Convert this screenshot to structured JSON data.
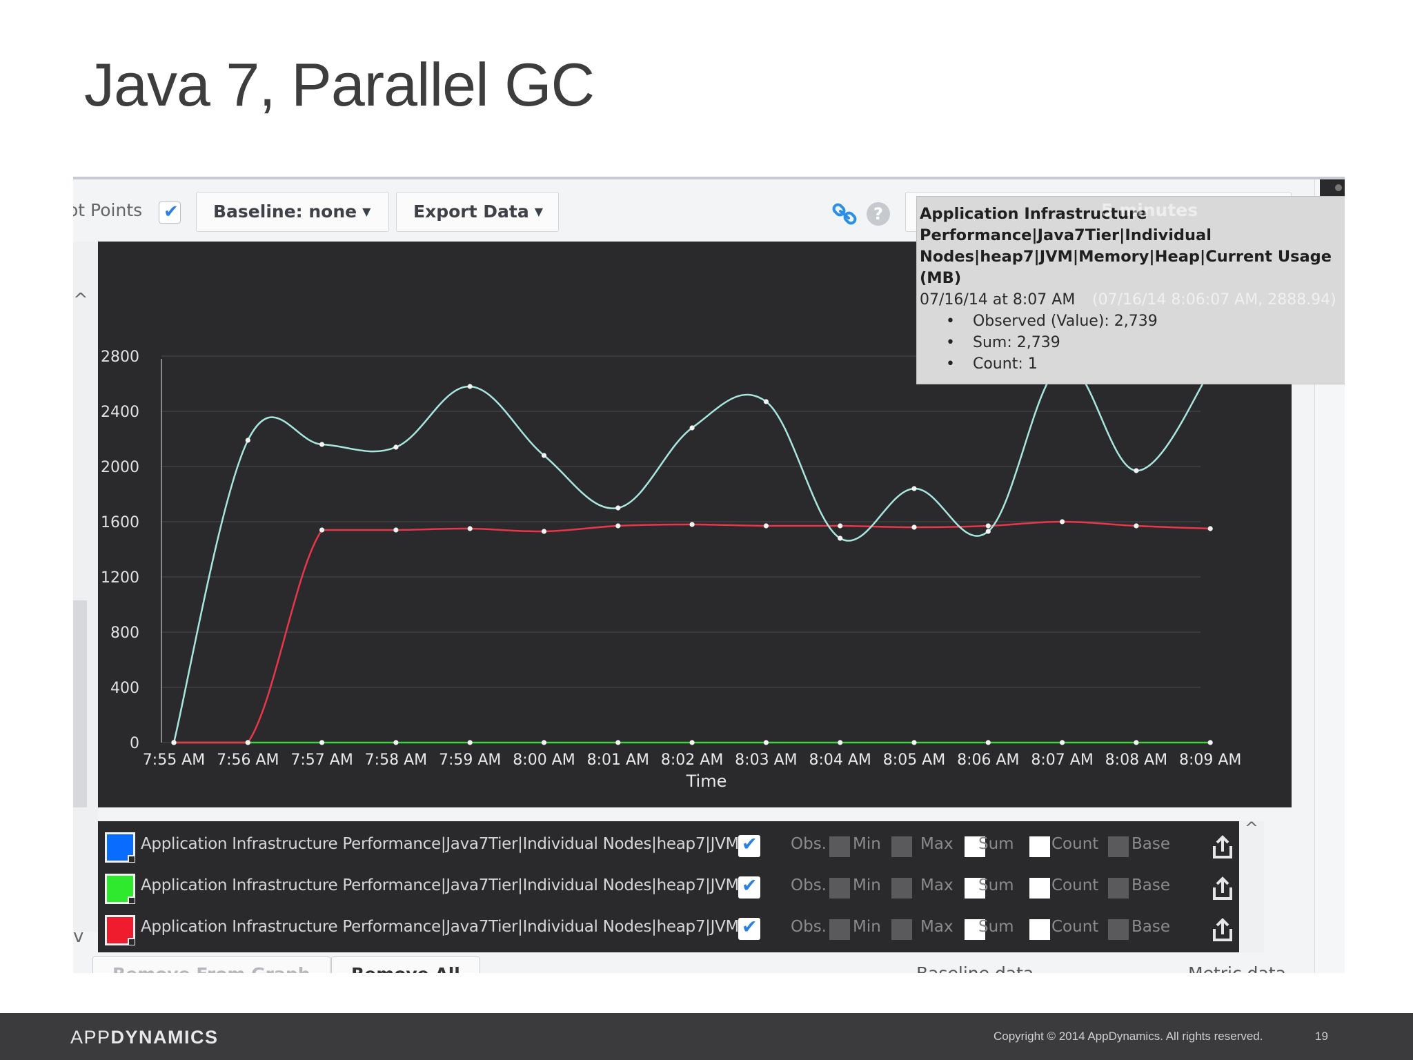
{
  "slide": {
    "title": "Java 7, Parallel GC",
    "page_number": "19"
  },
  "footer": {
    "logo_light": "APP",
    "logo_bold": "DYNAMICS",
    "copyright": "Copyright © 2014 AppDynamics. All rights reserved."
  },
  "toolbar": {
    "plot_points_label": "ot Points",
    "plot_points_checked": true,
    "baseline_label": "Baseline:  none",
    "export_label": "Export Data",
    "time_range_ghost": "5 minutes",
    "link_icon": "link-icon",
    "help_icon": "help-icon",
    "help_glyph": "?"
  },
  "tooltip": {
    "title": "Application Infrastructure Performance|Java7Tier|Individual Nodes|heap7|JVM|Memory|Heap|Current Usage (MB)",
    "date": "07/16/14 at 8:07 AM",
    "ghost_coords": "(07/16/14 8:06:07 AM, 2888.94)",
    "items": [
      "Observed (Value): 2,739",
      "Sum: 2,739",
      "Count: 1"
    ]
  },
  "chart_data": {
    "type": "line",
    "xlabel": "Time",
    "ylabel": "",
    "ylim": [
      0,
      2800
    ],
    "yticks": [
      "0",
      "400",
      "800",
      "1200",
      "1600",
      "2000",
      "2400",
      "2800"
    ],
    "categories": [
      "7:55 AM",
      "7:56 AM",
      "7:57 AM",
      "7:58 AM",
      "7:59 AM",
      "8:00 AM",
      "8:01 AM",
      "8:02 AM",
      "8:03 AM",
      "8:04 AM",
      "8:05 AM",
      "8:06 AM",
      "8:07 AM",
      "8:08 AM",
      "8:09 AM"
    ],
    "grid": true,
    "series": [
      {
        "color": "#a8e6df",
        "values": [
          0,
          2190,
          2160,
          2140,
          2580,
          2080,
          1700,
          2280,
          2470,
          1480,
          1840,
          1530,
          2739,
          1970,
          2690
        ]
      },
      {
        "color": "#e8364a",
        "values": [
          0,
          0,
          1540,
          1540,
          1550,
          1530,
          1570,
          1580,
          1570,
          1570,
          1560,
          1570,
          1600,
          1570,
          1550
        ]
      },
      {
        "color": "#3fd13f",
        "values": [
          0,
          0,
          0,
          0,
          0,
          0,
          0,
          0,
          0,
          0,
          0,
          0,
          0,
          0,
          0
        ]
      }
    ],
    "highlight_index": 12,
    "highlight_series": 0
  },
  "legend": {
    "rows": [
      {
        "color": "#0a6cff",
        "name": "Application Infrastructure Performance|Java7Tier|Individual Nodes|heap7|JVM|...",
        "obs_checked": true
      },
      {
        "color": "#2fe92f",
        "name": "Application Infrastructure Performance|Java7Tier|Individual Nodes|heap7|JVM|...",
        "obs_checked": true
      },
      {
        "color": "#ef1c2e",
        "name": "Application Infrastructure Performance|Java7Tier|Individual Nodes|heap7|JVM|...",
        "obs_checked": true
      }
    ],
    "options": [
      "Obs.",
      "Min",
      "Max",
      "Sum",
      "Count",
      "Base"
    ]
  },
  "bottom": {
    "remove_from_graph": "Remove From Graph",
    "remove_all": "Remove All",
    "baseline_data": "Baseline data",
    "metric_data": "Metric data"
  }
}
